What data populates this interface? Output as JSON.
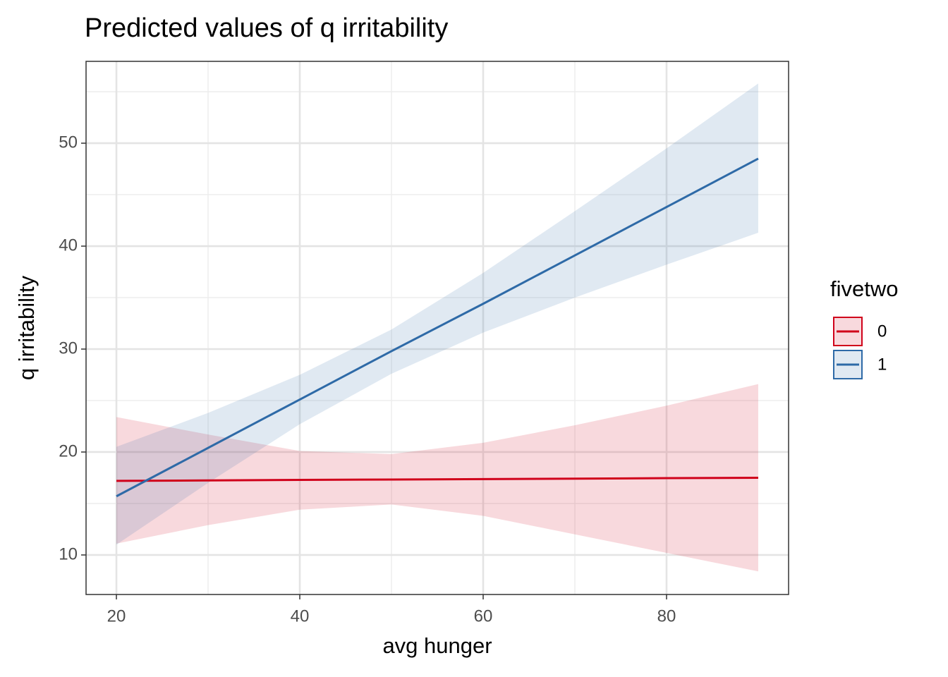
{
  "chart_data": {
    "type": "line",
    "title": "Predicted values of q irritability",
    "x_label": "avg hunger",
    "y_label": "q irritability",
    "legend_title": "fivetwo",
    "legend_position": "right",
    "grid": true,
    "x": [
      20,
      30,
      40,
      50,
      60,
      70,
      80,
      90
    ],
    "series": [
      {
        "name": "0",
        "color": "#d0021b",
        "values": [
          17.2,
          17.24,
          17.29,
          17.33,
          17.37,
          17.41,
          17.46,
          17.5
        ],
        "lower": [
          11.1,
          12.9,
          14.4,
          14.9,
          13.8,
          12.0,
          10.2,
          8.4
        ],
        "upper": [
          23.4,
          21.7,
          20.1,
          19.8,
          20.9,
          22.6,
          24.5,
          26.6
        ]
      },
      {
        "name": "1",
        "color": "#2e6aa7",
        "values": [
          15.7,
          20.4,
          25.1,
          29.8,
          34.4,
          39.1,
          43.8,
          48.5
        ],
        "lower": [
          11.0,
          17.0,
          22.7,
          27.6,
          31.6,
          35.0,
          38.2,
          41.3
        ],
        "upper": [
          20.5,
          23.8,
          27.5,
          31.9,
          37.4,
          43.4,
          49.5,
          55.8
        ]
      }
    ],
    "xlim": [
      16.69,
      93.31
    ],
    "ylim": [
      6.16,
      57.95
    ],
    "xticks": [
      20,
      40,
      60,
      80
    ],
    "yticks": [
      10,
      20,
      30,
      40,
      50
    ],
    "xminor": [
      30,
      50,
      70
    ],
    "yminor": [
      15,
      25,
      35,
      45,
      55
    ]
  }
}
